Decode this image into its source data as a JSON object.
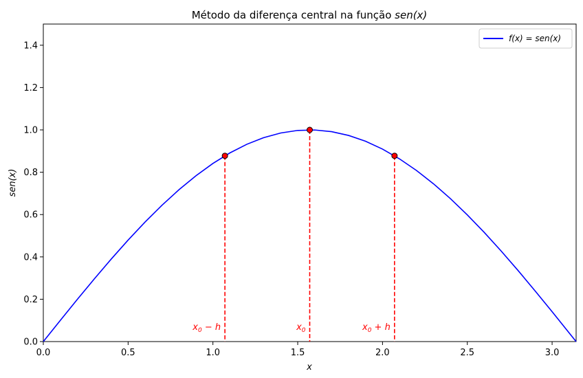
{
  "chart_data": {
    "type": "line",
    "title": "Método da diferença central na função sen(x)",
    "xlabel": "x",
    "ylabel": "sen(x)",
    "xlim": [
      0,
      3.14159
    ],
    "ylim": [
      0,
      1.5
    ],
    "x_ticks": [
      "0.0",
      "0.5",
      "1.0",
      "1.5",
      "2.0",
      "2.5",
      "3.0"
    ],
    "x_tick_values": [
      0,
      0.5,
      1.0,
      1.5,
      2.0,
      2.5,
      3.0
    ],
    "y_ticks": [
      "0.0",
      "0.2",
      "0.4",
      "0.6",
      "0.8",
      "1.0",
      "1.2",
      "1.4"
    ],
    "y_tick_values": [
      0,
      0.2,
      0.4,
      0.6,
      0.8,
      1.0,
      1.2,
      1.4
    ],
    "grid": false,
    "legend_position": "top-right",
    "series": [
      {
        "name": "f(x) = sen(x)",
        "color": "#0000ff",
        "x": [
          0,
          0.1,
          0.2,
          0.3,
          0.4,
          0.5,
          0.6,
          0.7,
          0.8,
          0.9,
          1.0,
          1.1,
          1.2,
          1.3,
          1.4,
          1.5,
          1.6,
          1.7,
          1.8,
          1.9,
          2.0,
          2.1,
          2.2,
          2.3,
          2.4,
          2.5,
          2.6,
          2.7,
          2.8,
          2.9,
          3.0,
          3.1,
          3.14159
        ],
        "y": [
          0,
          0.0998,
          0.1987,
          0.2955,
          0.3894,
          0.4794,
          0.5646,
          0.6442,
          0.7174,
          0.7833,
          0.8415,
          0.8912,
          0.932,
          0.9636,
          0.9854,
          0.9975,
          0.9996,
          0.9917,
          0.9738,
          0.9463,
          0.9093,
          0.8632,
          0.8085,
          0.7457,
          0.6755,
          0.5985,
          0.5155,
          0.4274,
          0.335,
          0.2392,
          0.1411,
          0.0416,
          0
        ]
      }
    ],
    "points": [
      {
        "label": "x0 − h",
        "x": 1.0708,
        "y": 0.8776
      },
      {
        "label": "x0",
        "x": 1.5708,
        "y": 1.0
      },
      {
        "label": "x0 + h",
        "x": 2.0708,
        "y": 0.8776
      }
    ],
    "marker_color": "#ff0000"
  }
}
